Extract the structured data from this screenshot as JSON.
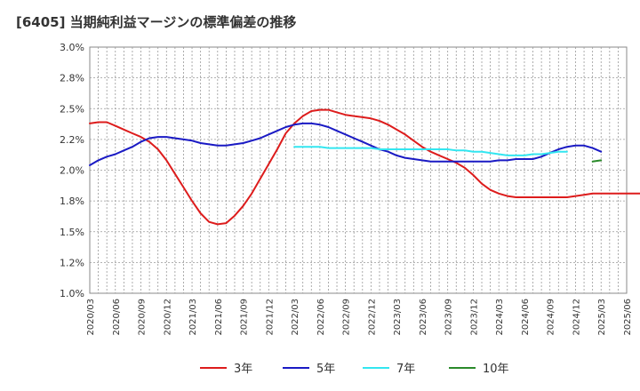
{
  "chart_data": {
    "type": "line",
    "title": "[6405]  当期純利益マージンの標準偏差の推移",
    "xlabel": "",
    "ylabel": "",
    "ylim": [
      1.0,
      3.0
    ],
    "y_ticks": [
      "3.0%",
      "2.8%",
      "2.5%",
      "2.2%",
      "2.0%",
      "1.8%",
      "1.5%",
      "1.2%",
      "1.0%"
    ],
    "x_ticks": [
      "2020/03",
      "2020/06",
      "2020/09",
      "2020/12",
      "2021/03",
      "2021/06",
      "2021/09",
      "2021/12",
      "2022/03",
      "2022/06",
      "2022/09",
      "2022/12",
      "2023/03",
      "2023/06",
      "2023/09",
      "2023/12",
      "2024/03",
      "2024/06",
      "2024/09",
      "2024/12",
      "2025/03",
      "2025/06"
    ],
    "x_start": "2020/03",
    "grid": true,
    "legend_position": "bottom",
    "series": [
      {
        "name": "3年",
        "color": "#dd1c1c",
        "start": "2020/03",
        "values": [
          2.38,
          2.39,
          2.39,
          2.36,
          2.33,
          2.3,
          2.27,
          2.23,
          2.17,
          2.08,
          1.97,
          1.86,
          1.75,
          1.65,
          1.58,
          1.56,
          1.57,
          1.63,
          1.71,
          1.81,
          1.93,
          2.05,
          2.17,
          2.3,
          2.38,
          2.44,
          2.48,
          2.49,
          2.49,
          2.47,
          2.45,
          2.44,
          2.43,
          2.42,
          2.4,
          2.37,
          2.33,
          2.29,
          2.24,
          2.19,
          2.15,
          2.12,
          2.09,
          2.06,
          2.02,
          1.96,
          1.89,
          1.84,
          1.81,
          1.79,
          1.78,
          1.78,
          1.78,
          1.78,
          1.78,
          1.78,
          1.78,
          1.79,
          1.8,
          1.81,
          1.81,
          1.81,
          1.81,
          1.81,
          1.81,
          1.81
        ]
      },
      {
        "name": "5年",
        "color": "#1a1ac4",
        "start": "2020/03",
        "values": [
          2.04,
          2.08,
          2.11,
          2.13,
          2.16,
          2.19,
          2.23,
          2.26,
          2.27,
          2.27,
          2.26,
          2.25,
          2.24,
          2.22,
          2.21,
          2.2,
          2.2,
          2.21,
          2.22,
          2.24,
          2.26,
          2.29,
          2.32,
          2.35,
          2.37,
          2.38,
          2.38,
          2.37,
          2.35,
          2.32,
          2.29,
          2.26,
          2.23,
          2.2,
          2.17,
          2.15,
          2.12,
          2.1,
          2.09,
          2.08,
          2.07,
          2.07,
          2.07,
          2.07,
          2.07,
          2.07,
          2.07,
          2.07,
          2.08,
          2.08,
          2.09,
          2.09,
          2.09,
          2.11,
          2.14,
          2.17,
          2.19,
          2.2,
          2.2,
          2.18,
          2.15
        ]
      },
      {
        "name": "7年",
        "color": "#33e6f0",
        "start": "2022/03",
        "values": [
          2.19,
          2.19,
          2.19,
          2.19,
          2.18,
          2.18,
          2.18,
          2.18,
          2.18,
          2.18,
          2.17,
          2.17,
          2.17,
          2.17,
          2.17,
          2.17,
          2.17,
          2.17,
          2.17,
          2.16,
          2.16,
          2.15,
          2.15,
          2.14,
          2.13,
          2.12,
          2.12,
          2.12,
          2.13,
          2.13,
          2.14,
          2.15,
          2.15
        ]
      },
      {
        "name": "10年",
        "color": "#2a8a2a",
        "start": "2025/02",
        "values": [
          2.07,
          2.08
        ]
      }
    ]
  }
}
